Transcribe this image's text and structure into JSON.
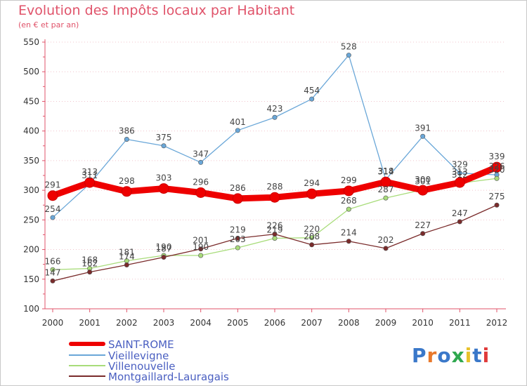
{
  "chart_data": {
    "type": "line",
    "title": "Evolution des Impôts locaux par Habitant",
    "subtitle": "(en € et par an)",
    "xlabel": "",
    "ylabel": "",
    "ylim": [
      100,
      550
    ],
    "yticks": [
      "100",
      "150",
      "200",
      "250",
      "300",
      "350",
      "400",
      "450",
      "500",
      "550"
    ],
    "categories": [
      "2000",
      "2001",
      "2002",
      "2003",
      "2004",
      "2005",
      "2006",
      "2007",
      "2008",
      "2009",
      "2010",
      "2011",
      "2012"
    ],
    "series": [
      {
        "name": "SAINT-ROME",
        "color": "#ee0000",
        "emphasis": true,
        "values": [
          291,
          313,
          298,
          303,
          296,
          286,
          288,
          294,
          299,
          314,
          300,
          313,
          339
        ],
        "labels": [
          "291",
          "313",
          "298",
          "303",
          "296",
          "286",
          "288",
          "294",
          "299",
          "314",
          "300",
          "313",
          "339"
        ]
      },
      {
        "name": "Vieillevigne",
        "color": "#6aa7d8",
        "emphasis": false,
        "values": [
          254,
          311,
          386,
          375,
          347,
          401,
          423,
          454,
          528,
          318,
          391,
          329,
          326
        ],
        "labels": [
          "254",
          "311",
          "386",
          "375",
          "347",
          "401",
          "423",
          "454",
          "528",
          "318",
          "391",
          "329",
          "326"
        ]
      },
      {
        "name": "Villenouvelle",
        "color": "#a8dc7a",
        "emphasis": false,
        "values": [
          166,
          168,
          181,
          190,
          190,
          203,
          219,
          220,
          268,
          287,
          301,
          312,
          320
        ],
        "labels": [
          "166",
          "168",
          "181",
          "190",
          "190",
          "203",
          "219",
          "220",
          "268",
          "287",
          "301",
          "312",
          "320"
        ]
      },
      {
        "name": "Montgaillard-Lauragais",
        "color": "#7a2b2b",
        "emphasis": false,
        "values": [
          147,
          162,
          174,
          187,
          201,
          219,
          226,
          208,
          214,
          202,
          227,
          247,
          275
        ],
        "labels": [
          "147",
          "162",
          "174",
          "187",
          "201",
          "219",
          "226",
          "208",
          "214",
          "202",
          "227",
          "247",
          "275"
        ]
      }
    ]
  },
  "legend": {
    "items": [
      "SAINT-ROME",
      "Vieillevigne",
      "Villenouvelle",
      "Montgaillard-Lauragais"
    ]
  },
  "branding": {
    "name": "Proxiti",
    "letters": [
      "P",
      "r",
      "o",
      "x",
      "i",
      "t",
      "i"
    ],
    "colors": [
      "#3a78c9",
      "#e8792b",
      "#3a78c9",
      "#2fa84f",
      "#e8c22b",
      "#3a78c9",
      "#e03a3a"
    ]
  },
  "colors": {
    "title": "#e0536a",
    "legend_text": "#4a5fc1",
    "axis": "#e0536a",
    "grid": "#f1c4cc"
  }
}
